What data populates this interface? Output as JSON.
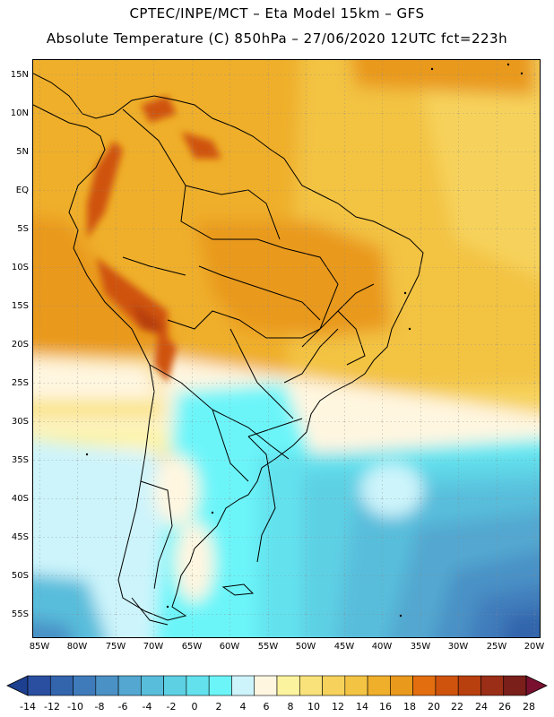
{
  "header": {
    "title_line1": "CPTEC/INPE/MCT –  Eta Model 15km – GFS",
    "title_line2": "Absolute Temperature (C) 850hPa – 27/06/2020 12UTC fct=223h"
  },
  "map": {
    "lat_labels": [
      "15N",
      "10N",
      "5N",
      "EQ",
      "5S",
      "10S",
      "15S",
      "20S",
      "25S",
      "30S",
      "35S",
      "40S",
      "45S",
      "50S",
      "55S"
    ],
    "lon_labels": [
      "85W",
      "80W",
      "75W",
      "70W",
      "65W",
      "60W",
      "55W",
      "50W",
      "45W",
      "40W",
      "35W",
      "30W",
      "25W",
      "20W"
    ]
  },
  "colorbar": {
    "labels": [
      "-14",
      "-12",
      "-10",
      "-8",
      "-6",
      "-4",
      "-2",
      "0",
      "2",
      "4",
      "6",
      "8",
      "10",
      "12",
      "14",
      "16",
      "18",
      "20",
      "22",
      "24",
      "26",
      "28"
    ],
    "colors": [
      "#2a4fa0",
      "#3365ac",
      "#3f7bbb",
      "#4a91c6",
      "#53a7d0",
      "#58bddb",
      "#5dd0e4",
      "#63e2ee",
      "#6cf5f9",
      "#cdf4fb",
      "#fff6e0",
      "#fbf39e",
      "#f9e27a",
      "#f6d25c",
      "#f3c343",
      "#efaf2b",
      "#e9991c",
      "#e36e0f",
      "#cf530d",
      "#b8400f",
      "#9a2e17",
      "#7a1f1a"
    ],
    "low_color": "#1d3f8f",
    "high_color": "#7a1030"
  }
}
